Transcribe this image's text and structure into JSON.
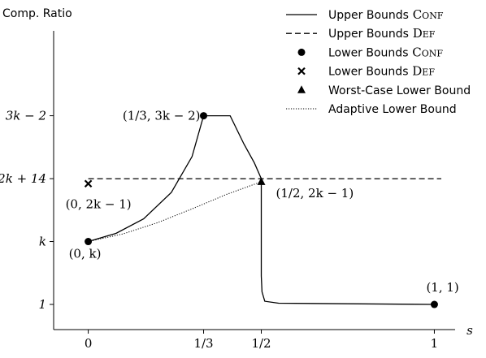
{
  "chart_data": {
    "type": "line",
    "ylabel": "Comp. Ratio",
    "xlabel": "s",
    "xlim": [
      -0.1,
      1.06
    ],
    "ylim": [
      0.6,
      5.35
    ],
    "x_ticks": [
      {
        "value": 0,
        "label": "0"
      },
      {
        "value": 0.3333,
        "label": "1/3"
      },
      {
        "value": 0.5,
        "label": "1/2"
      },
      {
        "value": 1,
        "label": "1"
      }
    ],
    "y_ticks": [
      {
        "value": 1,
        "label": "1"
      },
      {
        "value": 2,
        "label": "k"
      },
      {
        "value": 3,
        "label": "2k + 14"
      },
      {
        "value": 4,
        "label": "3k − 2"
      }
    ],
    "series": [
      {
        "name": "Upper Bounds",
        "name_sc": "Conf",
        "style": "solid",
        "color": "#000000",
        "points": [
          [
            0,
            2
          ],
          [
            0.08,
            2.13
          ],
          [
            0.16,
            2.36
          ],
          [
            0.24,
            2.78
          ],
          [
            0.3,
            3.35
          ],
          [
            0.3333,
            4
          ],
          [
            0.41,
            4
          ],
          [
            0.45,
            3.55
          ],
          [
            0.48,
            3.25
          ],
          [
            0.5,
            3
          ],
          [
            0.5,
            1.45
          ],
          [
            0.502,
            1.2
          ],
          [
            0.51,
            1.05
          ],
          [
            0.55,
            1.02
          ],
          [
            1,
            1
          ]
        ]
      },
      {
        "name": "Upper Bounds",
        "name_sc": "Def",
        "style": "dashed",
        "color": "#000000",
        "points": [
          [
            0,
            3
          ],
          [
            1.02,
            3
          ]
        ]
      },
      {
        "name": "Lower Bounds",
        "name_sc": "Conf",
        "style": "circle-marker",
        "color": "#000000",
        "points": [
          [
            0,
            2
          ],
          [
            0.3333,
            4
          ],
          [
            1,
            1
          ]
        ]
      },
      {
        "name": "Lower Bounds",
        "name_sc": "Def",
        "style": "x-marker",
        "color": "#000000",
        "points": [
          [
            0,
            2.92
          ]
        ]
      },
      {
        "name": "Worst-Case Lower Bound",
        "name_sc": "",
        "style": "triangle-marker",
        "color": "#000000",
        "points": [
          [
            0.5,
            2.95
          ]
        ]
      },
      {
        "name": "Adaptive Lower Bound",
        "name_sc": "",
        "style": "dotted",
        "color": "#000000",
        "points": [
          [
            0,
            2
          ],
          [
            0.1,
            2.12
          ],
          [
            0.2,
            2.3
          ],
          [
            0.3,
            2.52
          ],
          [
            0.4,
            2.75
          ],
          [
            0.5,
            2.95
          ]
        ]
      }
    ],
    "annotations": [
      {
        "text": "(0, k)",
        "x": 0,
        "y": 2
      },
      {
        "text": "(0, 2k − 1)",
        "x": 0,
        "y": 2.92
      },
      {
        "text": "(1/3, 3k − 2)",
        "x": 0.3333,
        "y": 4
      },
      {
        "text": "(1/2, 2k − 1)",
        "x": 0.5,
        "y": 2.95
      },
      {
        "text": "(1, 1)",
        "x": 1,
        "y": 1
      }
    ],
    "grid": false,
    "legend_position": "top-right"
  }
}
